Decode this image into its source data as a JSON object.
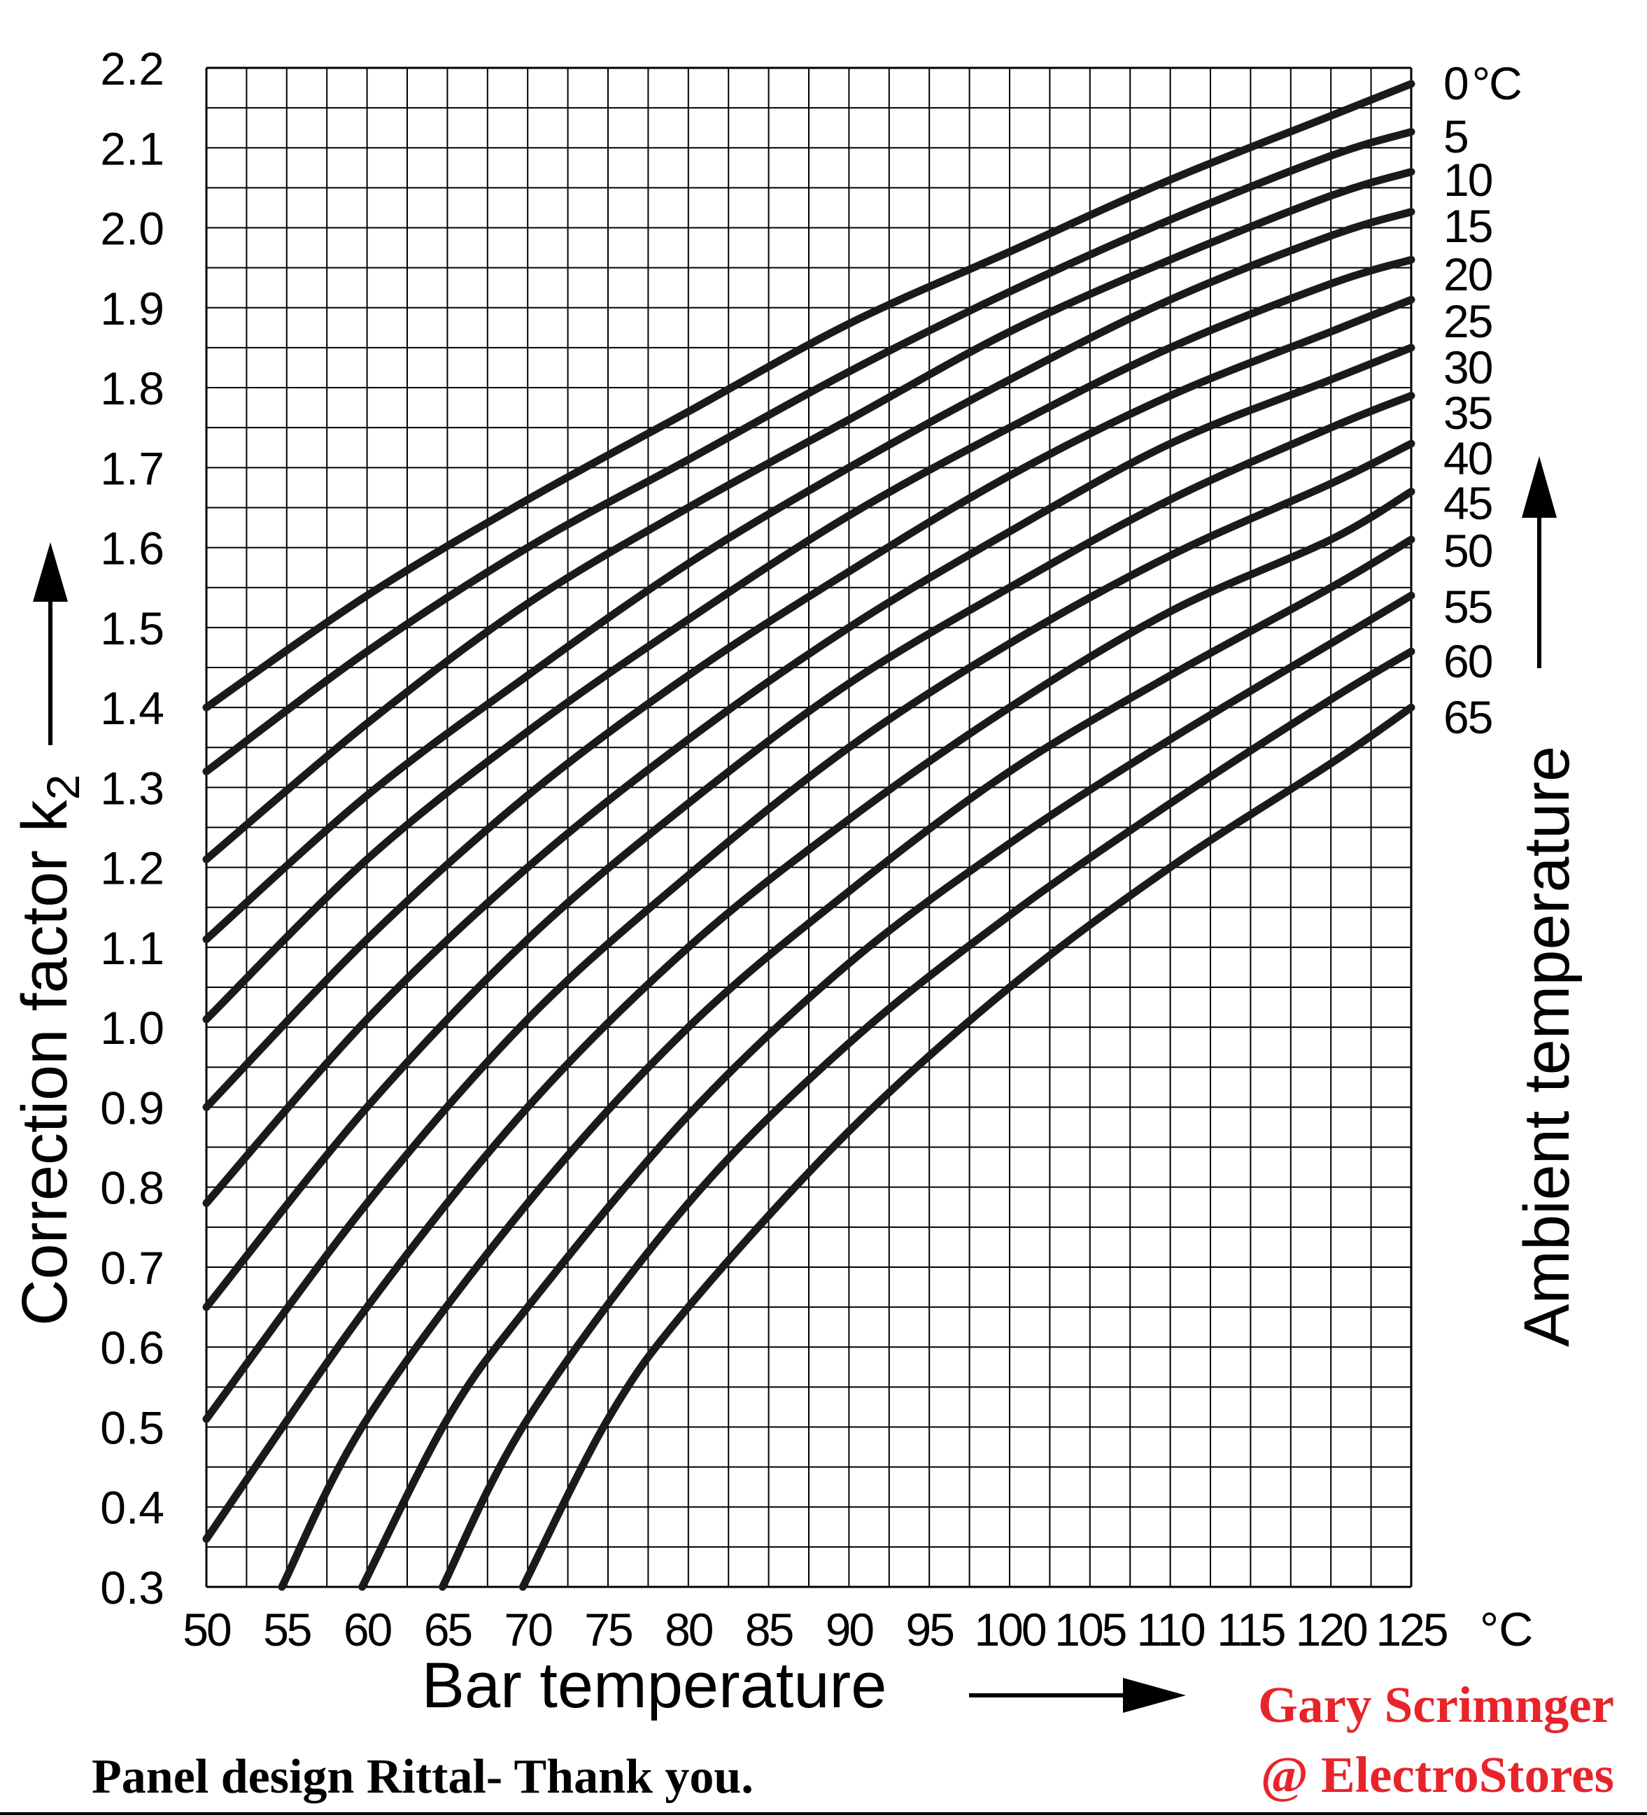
{
  "chart_data": {
    "type": "line",
    "xlabel": "Bar temperature",
    "xunit": "°C",
    "ylabel": "Correction factor k",
    "ylabel_subscript": "2",
    "legend_title": "Ambient temperature",
    "legend_unit": "°C",
    "xlim": [
      50,
      125
    ],
    "ylim": [
      0.3,
      2.2
    ],
    "x_ticks": [
      "50",
      "55",
      "60",
      "65",
      "70",
      "75",
      "80",
      "85",
      "90",
      "95",
      "100",
      "105",
      "110",
      "115",
      "120",
      "125"
    ],
    "y_ticks": [
      "2.2",
      "2.1",
      "2.0",
      "1.9",
      "1.8",
      "1.7",
      "1.6",
      "1.5",
      "1.4",
      "1.3",
      "1.2",
      "1.1",
      "1.0",
      "0.9",
      "0.8",
      "0.7",
      "0.6",
      "0.5",
      "0.4",
      "0.3"
    ],
    "grid": true,
    "series": [
      {
        "name": "0",
        "x": [
          50,
          60,
          70,
          80,
          90,
          100,
          110,
          120,
          125
        ],
        "y": [
          1.4,
          1.54,
          1.66,
          1.77,
          1.88,
          1.97,
          2.06,
          2.14,
          2.18
        ]
      },
      {
        "name": "5",
        "x": [
          50,
          60,
          70,
          80,
          90,
          100,
          110,
          120,
          125
        ],
        "y": [
          1.32,
          1.47,
          1.6,
          1.71,
          1.82,
          1.92,
          2.01,
          2.09,
          2.12
        ]
      },
      {
        "name": "10",
        "x": [
          50,
          60,
          70,
          80,
          90,
          100,
          110,
          120,
          125
        ],
        "y": [
          1.21,
          1.38,
          1.53,
          1.65,
          1.76,
          1.87,
          1.96,
          2.04,
          2.07
        ]
      },
      {
        "name": "15",
        "x": [
          50,
          60,
          70,
          80,
          90,
          100,
          110,
          120,
          125
        ],
        "y": [
          1.11,
          1.29,
          1.44,
          1.58,
          1.7,
          1.81,
          1.91,
          1.99,
          2.02
        ]
      },
      {
        "name": "20",
        "x": [
          50,
          60,
          70,
          80,
          90,
          100,
          110,
          120,
          125
        ],
        "y": [
          1.01,
          1.21,
          1.37,
          1.51,
          1.64,
          1.75,
          1.85,
          1.93,
          1.96
        ]
      },
      {
        "name": "25",
        "x": [
          50,
          60,
          70,
          80,
          90,
          100,
          110,
          120,
          125
        ],
        "y": [
          0.9,
          1.11,
          1.29,
          1.44,
          1.57,
          1.69,
          1.79,
          1.87,
          1.91
        ]
      },
      {
        "name": "30",
        "x": [
          50,
          60,
          70,
          80,
          90,
          100,
          110,
          120,
          125
        ],
        "y": [
          0.78,
          1.01,
          1.2,
          1.36,
          1.5,
          1.62,
          1.73,
          1.81,
          1.85
        ]
      },
      {
        "name": "35",
        "x": [
          50,
          60,
          70,
          80,
          90,
          100,
          110,
          120,
          125
        ],
        "y": [
          0.65,
          0.9,
          1.11,
          1.28,
          1.43,
          1.55,
          1.66,
          1.75,
          1.79
        ]
      },
      {
        "name": "40",
        "x": [
          50,
          60,
          70,
          80,
          90,
          100,
          110,
          120,
          125
        ],
        "y": [
          0.51,
          0.78,
          1.01,
          1.19,
          1.35,
          1.48,
          1.59,
          1.68,
          1.73
        ]
      },
      {
        "name": "45",
        "x": [
          50,
          60,
          70,
          80,
          90,
          100,
          110,
          120,
          125
        ],
        "y": [
          0.36,
          0.65,
          0.9,
          1.1,
          1.26,
          1.4,
          1.52,
          1.61,
          1.67
        ]
      },
      {
        "name": "50",
        "x": [
          54.7,
          60,
          70,
          80,
          90,
          100,
          110,
          120,
          125
        ],
        "y": [
          0.3,
          0.51,
          0.78,
          1.0,
          1.17,
          1.32,
          1.44,
          1.55,
          1.61
        ]
      },
      {
        "name": "55",
        "x": [
          59.7,
          65,
          70,
          80,
          90,
          100,
          110,
          120,
          125
        ],
        "y": [
          0.3,
          0.51,
          0.65,
          0.89,
          1.08,
          1.23,
          1.36,
          1.48,
          1.54
        ]
      },
      {
        "name": "60",
        "x": [
          64.7,
          70,
          80,
          90,
          100,
          110,
          120,
          125
        ],
        "y": [
          0.3,
          0.51,
          0.78,
          0.98,
          1.14,
          1.28,
          1.41,
          1.47
        ]
      },
      {
        "name": "65",
        "x": [
          69.7,
          75,
          80,
          90,
          100,
          110,
          120,
          125
        ],
        "y": [
          0.3,
          0.51,
          0.65,
          0.87,
          1.05,
          1.2,
          1.33,
          1.4
        ]
      }
    ]
  },
  "credits": {
    "author_line1": "Gary Scrimnger",
    "author_line2": "@ ElectroStores",
    "source": "Panel design Rittal- Thank you."
  }
}
